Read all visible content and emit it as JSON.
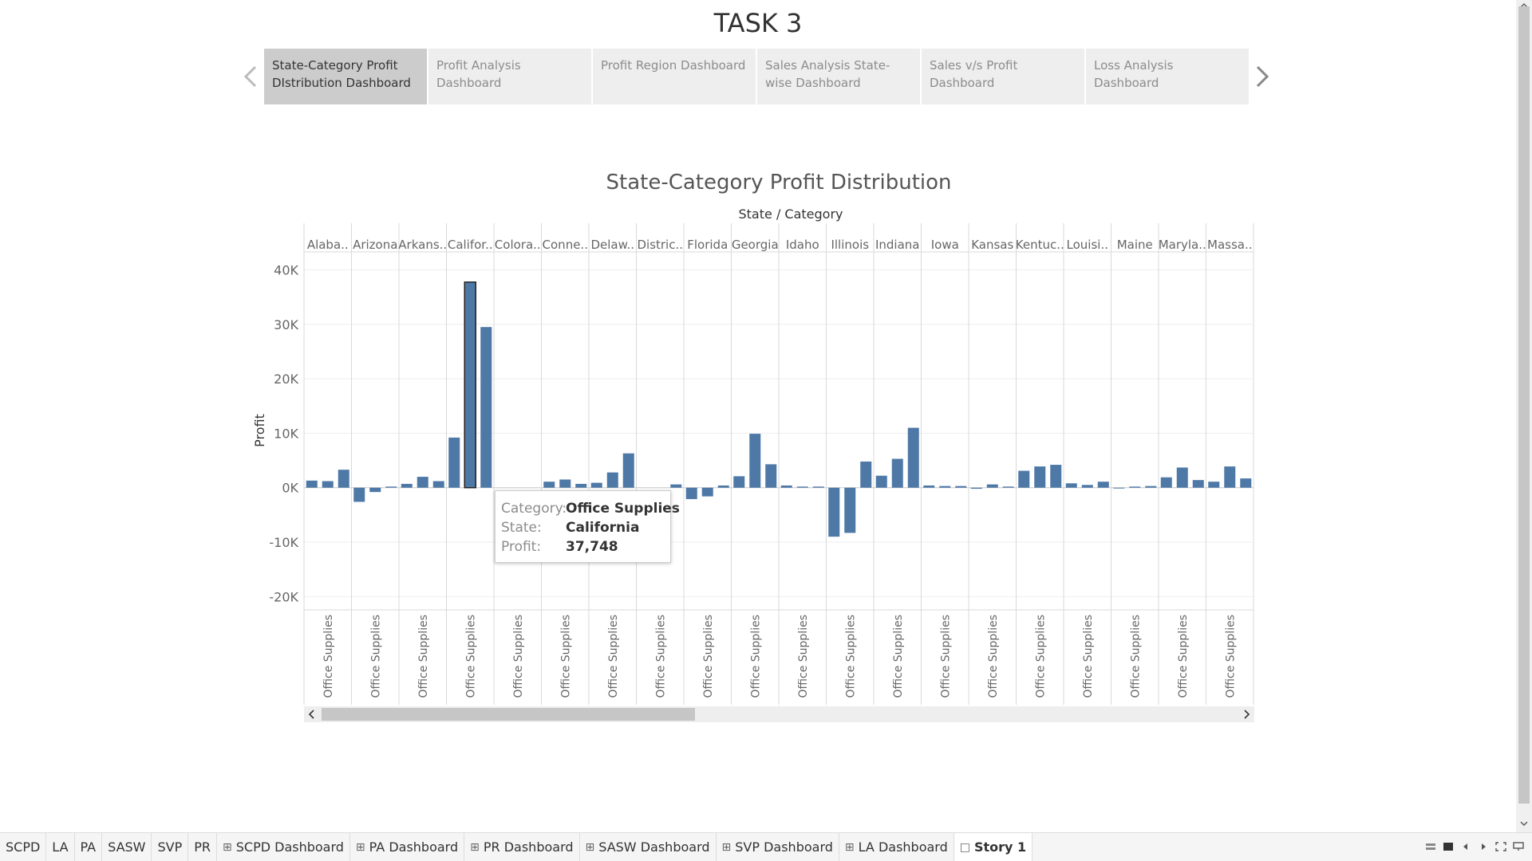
{
  "story": {
    "title": "TASK 3",
    "nav_tabs": [
      {
        "label": "State-Category Profit DIstribution Dashboard",
        "active": true
      },
      {
        "label": "Profit Analysis Dashboard",
        "active": false
      },
      {
        "label": "Profit Region Dashboard",
        "active": false
      },
      {
        "label": "Sales Analysis State-wise Dashboard",
        "active": false
      },
      {
        "label": "Sales v/s Profit Dashboard",
        "active": false
      },
      {
        "label": "Loss Analysis Dashboard",
        "active": false
      }
    ]
  },
  "chart_data": {
    "type": "bar",
    "title": "State-Category Profit Distribution",
    "header_label": "State / Category",
    "ylabel": "Profit",
    "ylim": [
      -22000,
      43000
    ],
    "yticks": [
      {
        "value": 40000,
        "label": "40K"
      },
      {
        "value": 30000,
        "label": "30K"
      },
      {
        "value": 20000,
        "label": "20K"
      },
      {
        "value": 10000,
        "label": "10K"
      },
      {
        "value": 0,
        "label": "0K"
      },
      {
        "value": -10000,
        "label": "-10K"
      },
      {
        "value": -20000,
        "label": "-20K"
      }
    ],
    "category_label": "Office Supplies",
    "bar_color": "#4e79a7",
    "states": [
      {
        "name": "Alaba..",
        "values": [
          1300,
          1200,
          3300
        ]
      },
      {
        "name": "Arizona",
        "values": [
          -2600,
          -800,
          200
        ]
      },
      {
        "name": "Arkans..",
        "values": [
          700,
          2000,
          1200
        ]
      },
      {
        "name": "Califor..",
        "values": [
          9200,
          37748,
          29500
        ],
        "highlight": 1
      },
      {
        "name": "Colora..",
        "values": [
          0,
          0,
          0
        ]
      },
      {
        "name": "Conne..",
        "values": [
          1100,
          1500,
          700
        ]
      },
      {
        "name": "Delaw..",
        "values": [
          900,
          2800,
          6300
        ]
      },
      {
        "name": "Distric..",
        "values": [
          0,
          0,
          600
        ]
      },
      {
        "name": "Florida",
        "values": [
          -2100,
          -1600,
          400
        ]
      },
      {
        "name": "Georgia",
        "values": [
          2100,
          9900,
          4300
        ]
      },
      {
        "name": "Idaho",
        "values": [
          400,
          200,
          200
        ]
      },
      {
        "name": "Illinois",
        "values": [
          -9000,
          -8300,
          4800
        ]
      },
      {
        "name": "Indiana",
        "values": [
          2200,
          5300,
          11000
        ]
      },
      {
        "name": "Iowa",
        "values": [
          400,
          300,
          300
        ]
      },
      {
        "name": "Kansas",
        "values": [
          -200,
          600,
          200
        ]
      },
      {
        "name": "Kentuc..",
        "values": [
          3100,
          3900,
          4200
        ]
      },
      {
        "name": "Louisi..",
        "values": [
          800,
          500,
          1100
        ]
      },
      {
        "name": "Maine",
        "values": [
          -100,
          200,
          300
        ]
      },
      {
        "name": "Maryla..",
        "values": [
          1900,
          3700,
          1400
        ]
      },
      {
        "name": "Massa..",
        "values": [
          1100,
          3900,
          1700
        ]
      }
    ],
    "tooltip": {
      "category_key": "Category:",
      "category_value": "Office Supplies",
      "state_key": "State:",
      "state_value": "California",
      "profit_key": "Profit:",
      "profit_value": "37,748"
    }
  },
  "sheet_tabs": [
    {
      "label": "SCPD",
      "icon": false,
      "active": false
    },
    {
      "label": "LA",
      "icon": false,
      "active": false
    },
    {
      "label": "PA",
      "icon": false,
      "active": false
    },
    {
      "label": "SASW",
      "icon": false,
      "active": false
    },
    {
      "label": "SVP",
      "icon": false,
      "active": false
    },
    {
      "label": "PR",
      "icon": false,
      "active": false
    },
    {
      "label": "SCPD Dashboard",
      "icon": "dashboard-icon",
      "active": false
    },
    {
      "label": "PA Dashboard",
      "icon": "dashboard-icon",
      "active": false
    },
    {
      "label": "PR Dashboard",
      "icon": "dashboard-icon",
      "active": false
    },
    {
      "label": "SASW Dashboard",
      "icon": "dashboard-icon",
      "active": false
    },
    {
      "label": "SVP Dashboard",
      "icon": "dashboard-icon",
      "active": false
    },
    {
      "label": "LA Dashboard",
      "icon": "dashboard-icon",
      "active": false
    },
    {
      "label": "Story 1",
      "icon": "story-icon",
      "active": true
    }
  ]
}
